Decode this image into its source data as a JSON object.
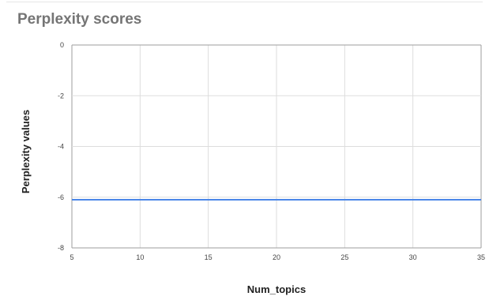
{
  "chart_data": {
    "type": "line",
    "title": "Perplexity scores",
    "xlabel": "Num_topics",
    "ylabel": "Perplexity values",
    "xlim": [
      5,
      35
    ],
    "ylim": [
      -8,
      0
    ],
    "xticks": [
      5,
      10,
      15,
      20,
      25,
      30,
      35
    ],
    "yticks": [
      0,
      -2,
      -4,
      -6,
      -8
    ],
    "grid": true,
    "legend": "none",
    "series": [
      {
        "x": [
          5,
          10,
          15,
          20,
          25,
          30,
          35
        ],
        "values": [
          -6.1,
          -6.1,
          -6.1,
          -6.1,
          -6.1,
          -6.1,
          -6.1
        ],
        "color": "#4a86e8"
      }
    ],
    "gridColor": "#dddddd",
    "axisColor": "#9e9e9e"
  }
}
